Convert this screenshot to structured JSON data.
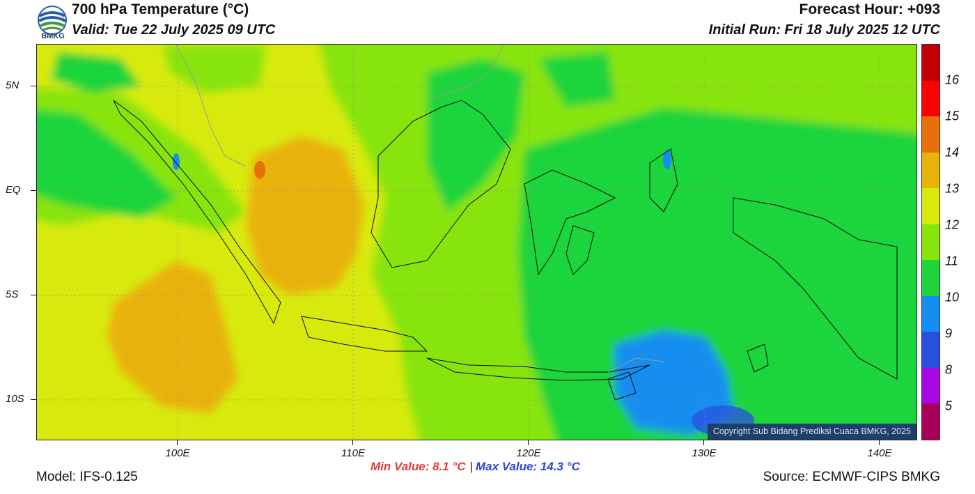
{
  "header": {
    "title": "700 hPa Temperature (°C)",
    "valid": "Valid: Tue 22 July 2025 09 UTC",
    "forecast_hour": "Forecast Hour: +093",
    "initial_run": "Initial Run: Fri 18 July 2025 12 UTC"
  },
  "logo": {
    "text": "BMKG",
    "icon": "bmkg-logo-icon"
  },
  "map": {
    "copyright": "Copyright Sub Bidang Prediksi Cuaca BMKG, 2025",
    "lat_labels": [
      "5N",
      "EQ",
      "5S",
      "10S"
    ],
    "lon_labels": [
      "100E",
      "110E",
      "120E",
      "130E",
      "140E"
    ],
    "extent": {
      "lon": [
        92,
        142.3
      ],
      "lat": [
        -12,
        7
      ]
    }
  },
  "colorbar": {
    "labels": [
      "16",
      "15",
      "14",
      "13",
      "12",
      "11",
      "10",
      "9",
      "8",
      "5"
    ],
    "colors": [
      "#c10000",
      "#ff0000",
      "#e8700a",
      "#e8b20a",
      "#d8ea0a",
      "#88e40c",
      "#1ed43a",
      "#148ef0",
      "#2a50e0",
      "#a808e8",
      "#a8005a"
    ]
  },
  "footer": {
    "min_value": "Min Value: 8.1 °C",
    "separator": "|",
    "max_value": "Max Value: 14.3 °C",
    "model": "Model: IFS-0.125",
    "source": "Source: ECMWF-CIPS BMKG"
  }
}
